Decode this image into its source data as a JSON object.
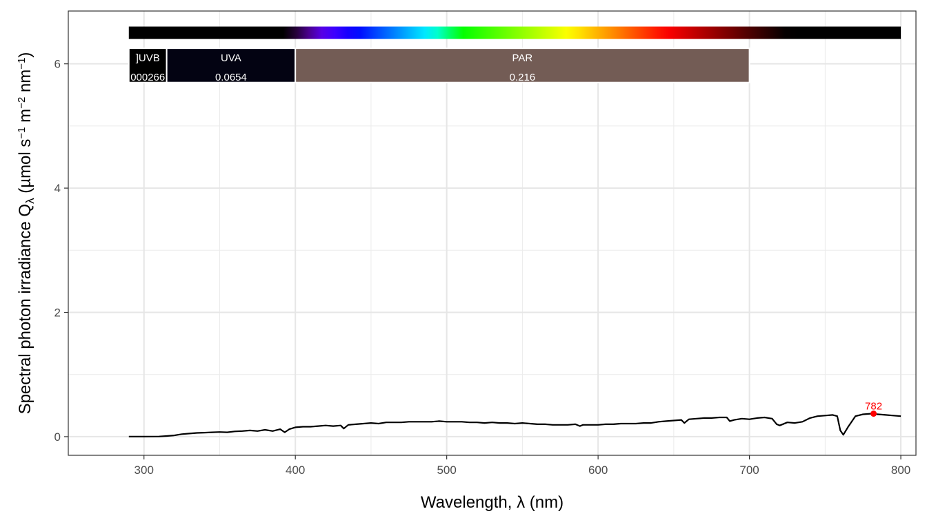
{
  "chart_data": {
    "type": "line",
    "xlabel": "Wavelength, λ (nm)",
    "ylabel": {
      "main": "Spectral  photon  irradiance  Q",
      "sub": "λ",
      "unit_open": "  (µmol s",
      "exp1": "−1",
      "unit_mid": " m",
      "exp2": "−2",
      "unit_nm": " nm",
      "exp3": "−1",
      "unit_close": ")"
    },
    "xlim": [
      250,
      810
    ],
    "ylim": [
      -0.3,
      6.85
    ],
    "x_ticks": [
      300,
      400,
      500,
      600,
      700,
      800
    ],
    "x_tick_labels": [
      "300",
      "400",
      "500",
      "600",
      "700",
      "800"
    ],
    "y_ticks": [
      0,
      2,
      4,
      6
    ],
    "y_tick_labels": [
      "0",
      "2",
      "4",
      "6"
    ],
    "grid": true,
    "line_color": "#000000",
    "series": [
      {
        "x": [
          290,
          300,
          310,
          315,
          320,
          325,
          330,
          335,
          340,
          345,
          350,
          355,
          360,
          365,
          370,
          375,
          380,
          385,
          390,
          393,
          396,
          400,
          405,
          410,
          415,
          420,
          425,
          430,
          432,
          435,
          440,
          445,
          450,
          455,
          460,
          465,
          470,
          475,
          480,
          485,
          490,
          495,
          500,
          505,
          510,
          515,
          520,
          525,
          530,
          535,
          540,
          545,
          550,
          555,
          560,
          565,
          570,
          575,
          580,
          585,
          588,
          590,
          595,
          600,
          605,
          610,
          615,
          620,
          625,
          630,
          635,
          640,
          645,
          650,
          655,
          657,
          660,
          665,
          670,
          675,
          680,
          685,
          687,
          690,
          695,
          700,
          705,
          710,
          715,
          718,
          720,
          725,
          730,
          735,
          740,
          745,
          750,
          755,
          758,
          760,
          762,
          765,
          770,
          775,
          780,
          785,
          790,
          795,
          800
        ],
        "y": [
          0.0,
          0.0,
          0.003,
          0.01,
          0.02,
          0.04,
          0.05,
          0.06,
          0.065,
          0.07,
          0.075,
          0.07,
          0.085,
          0.09,
          0.1,
          0.09,
          0.11,
          0.09,
          0.12,
          0.07,
          0.12,
          0.15,
          0.16,
          0.16,
          0.17,
          0.18,
          0.17,
          0.18,
          0.13,
          0.19,
          0.2,
          0.21,
          0.22,
          0.21,
          0.23,
          0.23,
          0.23,
          0.24,
          0.24,
          0.24,
          0.24,
          0.25,
          0.24,
          0.24,
          0.24,
          0.23,
          0.23,
          0.22,
          0.23,
          0.22,
          0.22,
          0.21,
          0.22,
          0.21,
          0.2,
          0.2,
          0.19,
          0.19,
          0.19,
          0.2,
          0.17,
          0.19,
          0.19,
          0.19,
          0.2,
          0.2,
          0.21,
          0.21,
          0.21,
          0.22,
          0.22,
          0.24,
          0.25,
          0.26,
          0.27,
          0.22,
          0.28,
          0.29,
          0.3,
          0.3,
          0.31,
          0.31,
          0.25,
          0.27,
          0.29,
          0.28,
          0.3,
          0.31,
          0.29,
          0.2,
          0.18,
          0.23,
          0.22,
          0.24,
          0.3,
          0.33,
          0.34,
          0.35,
          0.33,
          0.1,
          0.03,
          0.15,
          0.33,
          0.36,
          0.37,
          0.36,
          0.35,
          0.34,
          0.33
        ]
      }
    ],
    "color_bar": {
      "x_range": [
        290,
        800
      ],
      "y_range": [
        6.4,
        6.6
      ]
    },
    "bands": [
      {
        "name": "]UVB",
        "value": "000266",
        "x_start": 290,
        "x_end": 315,
        "color": "#000000"
      },
      {
        "name": "UVA",
        "value": "0.0654",
        "x_start": 315,
        "x_end": 400,
        "color": "#030312"
      },
      {
        "name": "PAR",
        "value": "0.216",
        "x_start": 400,
        "x_end": 700,
        "color": "#735C55"
      }
    ],
    "band_y_range": [
      5.7,
      6.25
    ],
    "peak": {
      "x": 782,
      "y": 0.37,
      "label": "782",
      "color": "#ff0000"
    }
  }
}
